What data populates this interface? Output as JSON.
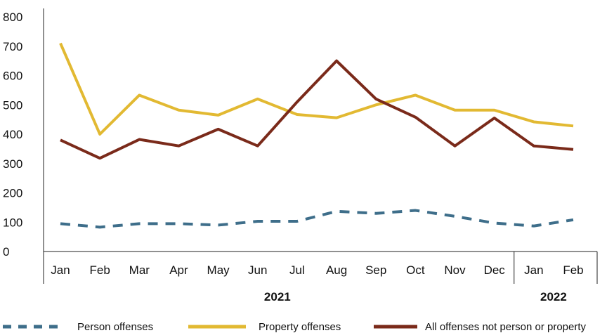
{
  "chart_data": {
    "type": "line",
    "categories": [
      "Jan",
      "Feb",
      "Mar",
      "Apr",
      "May",
      "Jun",
      "Jul",
      "Aug",
      "Sep",
      "Oct",
      "Nov",
      "Dec",
      "Jan",
      "Feb"
    ],
    "year_groups": [
      {
        "label": "2021",
        "months": 12
      },
      {
        "label": "2022",
        "months": 2
      }
    ],
    "yticks": [
      "0",
      "100",
      "200",
      "300",
      "400",
      "500",
      "600",
      "700",
      "800"
    ],
    "ylim": [
      0,
      800
    ],
    "grid": false,
    "legend_position": "bottom",
    "series": [
      {
        "name": "Person offenses",
        "color": "#3e6e8a",
        "style": "dashed",
        "values": [
          95,
          83,
          95,
          95,
          90,
          103,
          103,
          137,
          130,
          140,
          120,
          97,
          87,
          108
        ]
      },
      {
        "name": "Property offenses",
        "color": "#e2b932",
        "style": "solid",
        "values": [
          710,
          400,
          533,
          482,
          465,
          520,
          467,
          456,
          500,
          533,
          482,
          482,
          442,
          428
        ]
      },
      {
        "name": "All offenses not person or property",
        "color": "#7a2a1a",
        "style": "solid",
        "values": [
          380,
          318,
          382,
          360,
          417,
          360,
          510,
          650,
          520,
          458,
          360,
          455,
          360,
          348
        ]
      }
    ]
  }
}
